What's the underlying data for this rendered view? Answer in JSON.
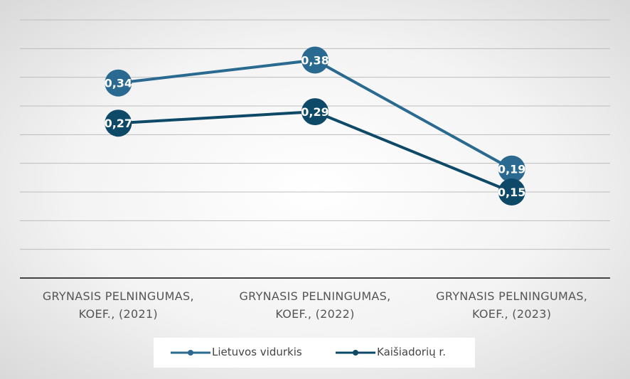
{
  "chart_data": {
    "type": "line",
    "categories": [
      "GRYNASIS PELNINGUMAS, KOEF., (2021)",
      "GRYNASIS PELNINGUMAS, KOEF., (2022)",
      "GRYNASIS PELNINGUMAS, KOEF., (2023)"
    ],
    "series": [
      {
        "name": "Lietuvos vidurkis",
        "color": "#2a6a90",
        "values": [
          0.34,
          0.38,
          0.19
        ],
        "value_labels": [
          "0,34",
          "0,38",
          "0,19"
        ]
      },
      {
        "name": "Kaišiadorių r.",
        "color": "#0e4a68",
        "values": [
          0.27,
          0.29,
          0.15
        ],
        "value_labels": [
          "0,27",
          "0,29",
          "0,15"
        ]
      }
    ],
    "ylim": [
      0,
      0.45
    ],
    "yticks": [
      0.05,
      0.1,
      0.15,
      0.2,
      0.25,
      0.3,
      0.35,
      0.4,
      0.45
    ],
    "grid": true,
    "legend": "bottom"
  }
}
